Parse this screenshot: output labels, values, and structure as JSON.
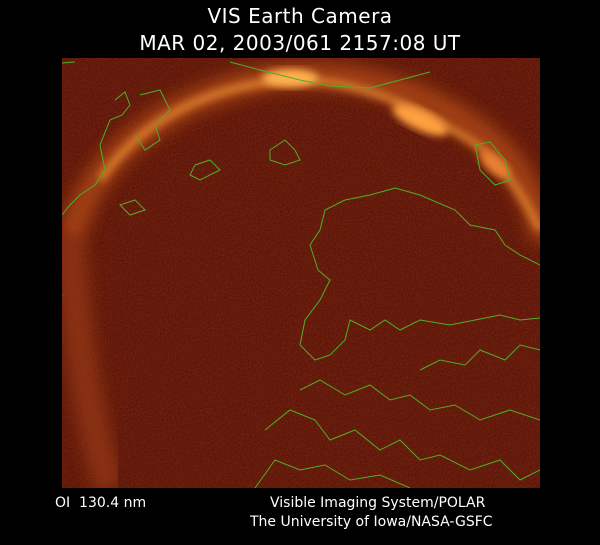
{
  "header": {
    "title": "VIS Earth Camera",
    "timestamp": "MAR 02, 2003/061 2157:08 UT"
  },
  "footer": {
    "filter": "OI  130.4 nm",
    "instrument": "Visible Imaging System/POLAR",
    "credit": "The University of Iowa/NASA-GSFC"
  }
}
